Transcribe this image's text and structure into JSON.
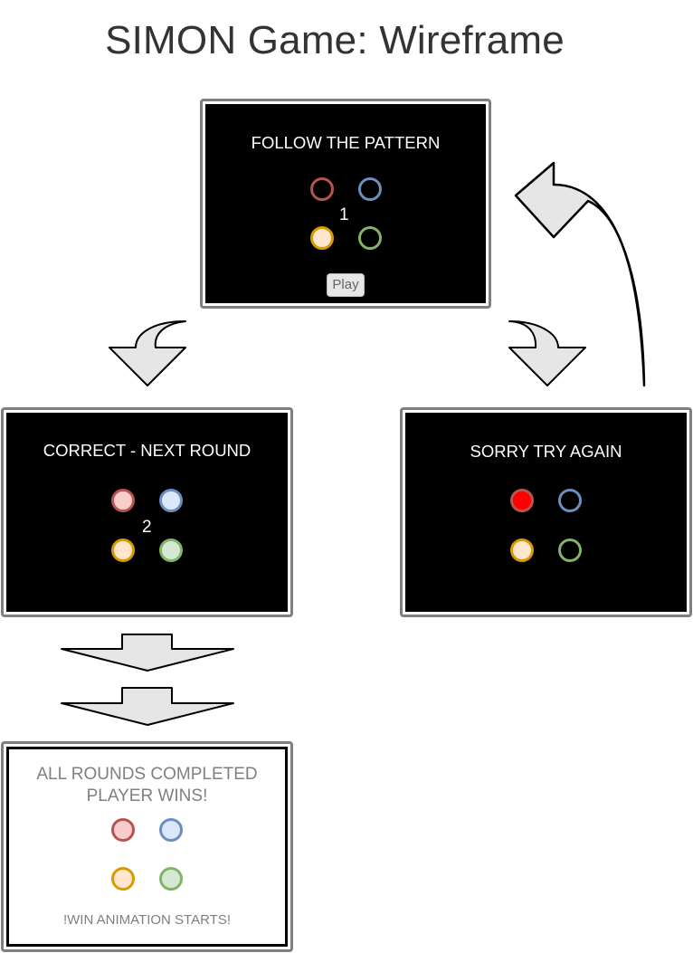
{
  "title": "SIMON Game: Wireframe",
  "colors": {
    "red_stroke": "#b85450",
    "red_fill": "#f8cecc",
    "blue_stroke": "#6c8ebf",
    "blue_fill": "#dae8fc",
    "yellow_stroke": "#d79b00",
    "yellow_fill": "#ffe6cc",
    "green_stroke": "#82b366",
    "green_fill": "#d5e8d4",
    "error_fill": "#ff0000",
    "arrow_fill": "#e6e6e6"
  },
  "screens": {
    "start": {
      "heading": "FOLLOW THE PATTERN",
      "round": "1",
      "play_label": "Play"
    },
    "correct": {
      "heading": "CORRECT - NEXT ROUND",
      "round": "2"
    },
    "wrong": {
      "heading": "SORRY TRY AGAIN"
    },
    "win": {
      "heading_line1": "ALL ROUNDS COMPLETED",
      "heading_line2": "PLAYER WINS!",
      "note": "!WIN ANIMATION STARTS!"
    }
  }
}
